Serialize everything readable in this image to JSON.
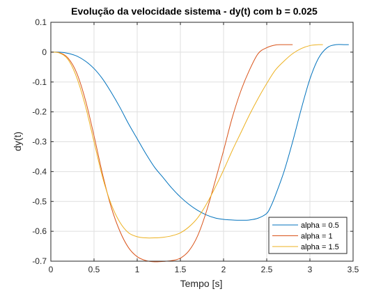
{
  "chart_data": {
    "type": "line",
    "title": "Evolução da velocidade sistema - dy(t) com b = 0.025",
    "xlabel": "Tempo [s]",
    "ylabel": "dy(t)",
    "xlim": [
      0,
      3.5
    ],
    "ylim": [
      -0.7,
      0.1
    ],
    "xticks": [
      0,
      0.5,
      1,
      1.5,
      2,
      2.5,
      3,
      3.5
    ],
    "xtick_labels": [
      "0",
      "0.5",
      "1",
      "1.5",
      "2",
      "2.5",
      "3",
      "3.5"
    ],
    "yticks": [
      -0.7,
      -0.6,
      -0.5,
      -0.4,
      -0.3,
      -0.2,
      -0.1,
      0,
      0.1
    ],
    "ytick_labels": [
      "-0.7",
      "-0.6",
      "-0.5",
      "-0.4",
      "-0.3",
      "-0.2",
      "-0.1",
      "0",
      "0.1"
    ],
    "grid": true,
    "legend_position": "bottom-right",
    "series": [
      {
        "name": "alpha = 0.5",
        "color": "#0072BD",
        "x": [
          0,
          0.1,
          0.2,
          0.3,
          0.4,
          0.5,
          0.6,
          0.7,
          0.8,
          0.9,
          1.0,
          1.1,
          1.2,
          1.3,
          1.4,
          1.5,
          1.6,
          1.7,
          1.8,
          1.9,
          2.0,
          2.1,
          2.2,
          2.3,
          2.4,
          2.5,
          2.55,
          2.6,
          2.7,
          2.8,
          2.9,
          3.0,
          3.1,
          3.2,
          3.3,
          3.4,
          3.45
        ],
        "y": [
          0,
          0,
          -0.004,
          -0.013,
          -0.03,
          -0.055,
          -0.09,
          -0.135,
          -0.185,
          -0.24,
          -0.29,
          -0.34,
          -0.385,
          -0.42,
          -0.455,
          -0.485,
          -0.51,
          -0.53,
          -0.545,
          -0.555,
          -0.56,
          -0.562,
          -0.563,
          -0.562,
          -0.556,
          -0.54,
          -0.515,
          -0.48,
          -0.4,
          -0.3,
          -0.19,
          -0.09,
          -0.02,
          0.015,
          0.025,
          0.025,
          0.025
        ]
      },
      {
        "name": "alpha = 1",
        "color": "#D95319",
        "x": [
          0,
          0.1,
          0.2,
          0.3,
          0.4,
          0.5,
          0.6,
          0.7,
          0.8,
          0.9,
          1.0,
          1.1,
          1.2,
          1.3,
          1.4,
          1.5,
          1.6,
          1.7,
          1.8,
          1.9,
          2.0,
          2.1,
          2.2,
          2.3,
          2.4,
          2.5,
          2.6,
          2.7,
          2.8
        ],
        "y": [
          0,
          -0.002,
          -0.02,
          -0.07,
          -0.16,
          -0.28,
          -0.41,
          -0.52,
          -0.6,
          -0.655,
          -0.685,
          -0.698,
          -0.702,
          -0.701,
          -0.698,
          -0.69,
          -0.665,
          -0.615,
          -0.535,
          -0.435,
          -0.33,
          -0.22,
          -0.13,
          -0.06,
          -0.005,
          0.015,
          0.024,
          0.025,
          0.025
        ]
      },
      {
        "name": "alpha = 1.5",
        "color": "#EDB120",
        "x": [
          0,
          0.1,
          0.2,
          0.3,
          0.4,
          0.5,
          0.6,
          0.7,
          0.8,
          0.9,
          1.0,
          1.1,
          1.2,
          1.3,
          1.4,
          1.5,
          1.6,
          1.7,
          1.8,
          1.9,
          2.0,
          2.1,
          2.2,
          2.3,
          2.4,
          2.5,
          2.6,
          2.7,
          2.8,
          2.9,
          3.0,
          3.1,
          3.15
        ],
        "y": [
          0,
          -0.003,
          -0.025,
          -0.085,
          -0.18,
          -0.3,
          -0.42,
          -0.51,
          -0.57,
          -0.605,
          -0.618,
          -0.622,
          -0.622,
          -0.62,
          -0.615,
          -0.605,
          -0.585,
          -0.555,
          -0.51,
          -0.455,
          -0.395,
          -0.33,
          -0.27,
          -0.21,
          -0.155,
          -0.105,
          -0.06,
          -0.03,
          -0.005,
          0.012,
          0.022,
          0.025,
          0.025
        ]
      }
    ]
  }
}
